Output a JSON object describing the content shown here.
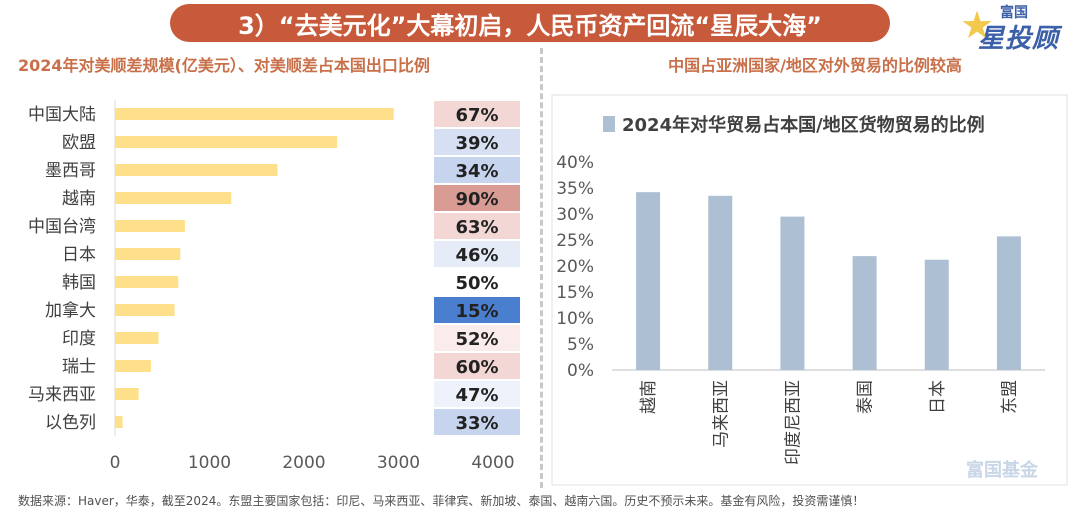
{
  "header": {
    "title": "3）“去美元化”大幕初启，人民币资产回流“星辰大海”",
    "logo_top": "富国",
    "logo_main": "星投顾",
    "watermark": "富国基金"
  },
  "footnote": "数据来源：Haver，华泰，截至2024。东盟主要国家包括：印尼、马来西亚、菲律宾、新加坡、泰国、越南六国。历史不预示未来。基金有风险，投资需谨慎！",
  "chart_data": [
    {
      "type": "bar",
      "orientation": "horizontal",
      "title": "2024年对美顺差规模(亿美元）、对美顺差占本国出口比例",
      "categories": [
        "中国大陆",
        "欧盟",
        "墨西哥",
        "越南",
        "中国台湾",
        "日本",
        "韩国",
        "加拿大",
        "印度",
        "瑞士",
        "马来西亚",
        "以色列"
      ],
      "values": [
        2950,
        2350,
        1720,
        1230,
        740,
        690,
        670,
        630,
        460,
        380,
        250,
        80
      ],
      "share_labels": [
        "67%",
        "39%",
        "34%",
        "90%",
        "63%",
        "46%",
        "50%",
        "15%",
        "52%",
        "60%",
        "47%",
        "33%"
      ],
      "share_colors": [
        "#f2d7d5",
        "#d6e0f2",
        "#c7d4ee",
        "#d99c94",
        "#f2d7d5",
        "#e6ecf7",
        "#ffffff",
        "#4a7fd0",
        "#faeceb",
        "#f2d7d5",
        "#eef2fa",
        "#c7d4ee"
      ],
      "xticks": [
        "0",
        "1000",
        "2000",
        "3000",
        "4000"
      ],
      "xlim": [
        0,
        4000
      ],
      "bar_color": "#ffe08a"
    },
    {
      "type": "bar",
      "title": "中国占亚洲国家/地区对外贸易的比例较高",
      "legend": "2024年对华贸易占本国/地区货物贸易的比例",
      "legend_position": "top",
      "categories": [
        "越南",
        "马来西亚",
        "印度尼西亚",
        "泰国",
        "日本",
        "东盟"
      ],
      "values": [
        34.2,
        33.5,
        29.5,
        21.9,
        21.2,
        25.7
      ],
      "yticks": [
        "0%",
        "5%",
        "10%",
        "15%",
        "20%",
        "25%",
        "30%",
        "35%",
        "40%"
      ],
      "ylim": [
        0,
        40
      ],
      "bar_color": "#adbfd2"
    }
  ]
}
